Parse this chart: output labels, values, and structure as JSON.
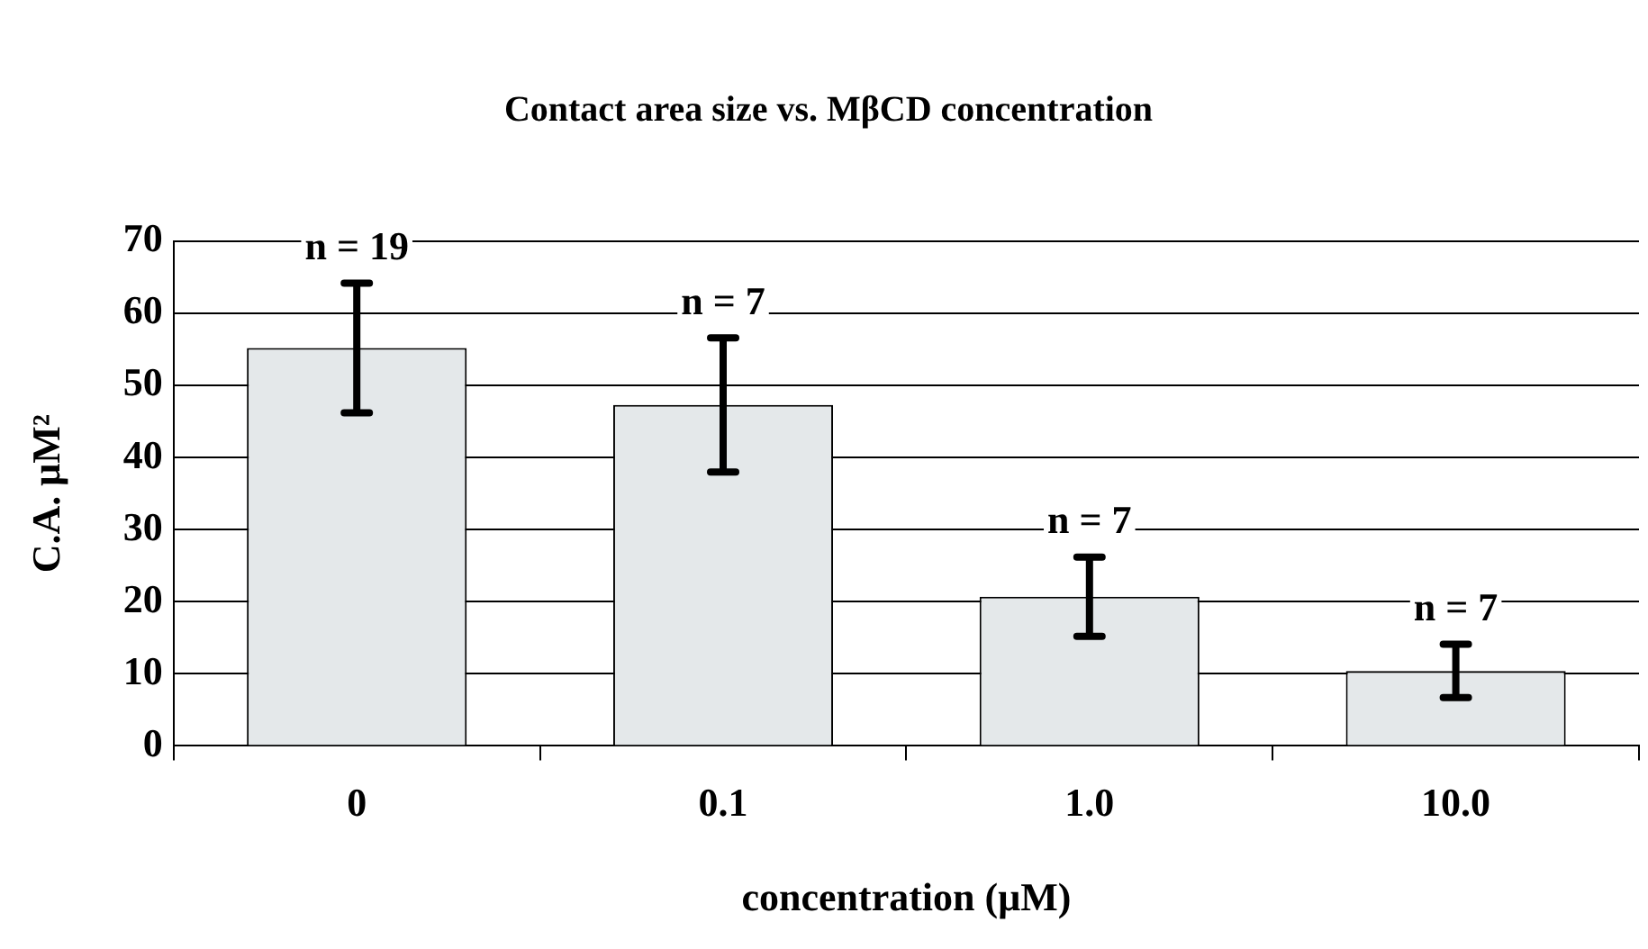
{
  "chart_data": {
    "type": "bar",
    "title": "Contact area size vs. MβCD concentration",
    "xlabel": "concentration (μM)",
    "ylabel": "C.A. μM²",
    "categories": [
      "0",
      "0.1",
      "1.0",
      "10.0"
    ],
    "values": [
      55.2,
      47.3,
      20.7,
      10.4
    ],
    "errors": [
      9,
      9.3,
      5.5,
      3.7
    ],
    "color": "#e4e8ea",
    "ylim": [
      0,
      70
    ],
    "yticks": [
      0,
      10,
      20,
      30,
      40,
      50,
      60,
      70
    ],
    "grid": "y",
    "legend": false,
    "annotations": [
      "n = 19",
      "n = 7",
      "n = 7",
      "n = 7"
    ]
  }
}
